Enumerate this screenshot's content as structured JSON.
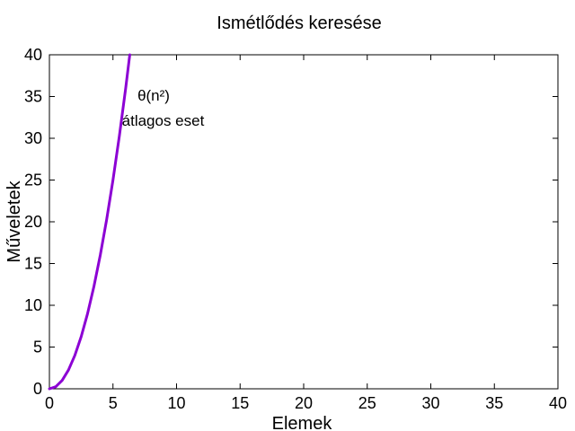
{
  "chart_data": {
    "type": "line",
    "title": "Ismétlődés keresése",
    "xlabel": "Elemek",
    "ylabel": "Műveletek",
    "xlim": [
      0,
      40
    ],
    "ylim": [
      0,
      40
    ],
    "xticks": [
      "0",
      "5",
      "10",
      "15",
      "20",
      "25",
      "30",
      "35",
      "40"
    ],
    "yticks": [
      "0",
      "5",
      "10",
      "15",
      "20",
      "25",
      "30",
      "35",
      "40"
    ],
    "grid": false,
    "series": [
      {
        "color": "#8c00d4",
        "x": [
          0,
          0.5,
          1,
          1.5,
          2,
          2.5,
          3,
          3.5,
          4,
          4.5,
          5,
          5.5,
          6,
          6.32
        ],
        "y": [
          0,
          0.25,
          1,
          2.25,
          4,
          6.25,
          9,
          12.25,
          16,
          20.25,
          25,
          30.25,
          36,
          40
        ]
      }
    ],
    "annotations": [
      {
        "text": "θ(n²)",
        "x": 8.2,
        "y": 34.5,
        "anchor": "middle"
      },
      {
        "text": "átlagos eset",
        "x": 5.7,
        "y": 31.5,
        "anchor": "start"
      }
    ]
  }
}
